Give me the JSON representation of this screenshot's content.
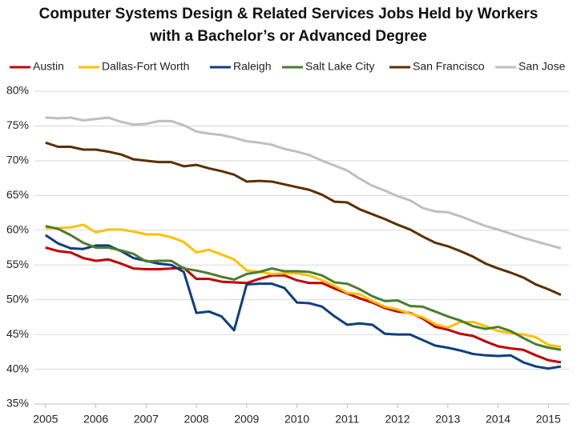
{
  "chart_data": {
    "type": "line",
    "title": [
      "Computer Systems Design & Related Services Jobs Held by Workers",
      "with a Bachelor’s or Advanced Degree"
    ],
    "x": [
      2005,
      2005.25,
      2005.5,
      2005.75,
      2006,
      2006.25,
      2006.5,
      2006.75,
      2007,
      2007.25,
      2007.5,
      2007.75,
      2008,
      2008.25,
      2008.5,
      2008.75,
      2009,
      2009.25,
      2009.5,
      2009.75,
      2010,
      2010.25,
      2010.5,
      2010.75,
      2011,
      2011.25,
      2011.5,
      2011.75,
      2012,
      2012.25,
      2012.5,
      2012.75,
      2013,
      2013.25,
      2013.5,
      2013.75,
      2014,
      2014.25,
      2014.5,
      2014.75,
      2015,
      2015.25
    ],
    "series": [
      {
        "name": "Austin",
        "color": "#c00000",
        "values": [
          57.5,
          57.0,
          56.8,
          56.0,
          55.6,
          55.8,
          55.2,
          54.5,
          54.4,
          54.4,
          54.5,
          54.6,
          53.0,
          53.0,
          52.6,
          52.5,
          52.4,
          53.0,
          53.5,
          53.5,
          52.8,
          52.4,
          52.4,
          51.6,
          50.9,
          50.2,
          49.6,
          48.8,
          48.3,
          48.1,
          47.3,
          46.1,
          45.7,
          45.1,
          44.8,
          44.0,
          43.3,
          43.0,
          42.8,
          42.0,
          41.3,
          41.0
        ]
      },
      {
        "name": "Dallas-Fort Worth",
        "color": "#ffc000",
        "values": [
          60.3,
          60.3,
          60.4,
          60.8,
          59.7,
          60.1,
          60.1,
          59.8,
          59.4,
          59.4,
          59.0,
          58.3,
          56.8,
          57.2,
          56.5,
          55.8,
          54.2,
          54.0,
          53.7,
          53.8,
          53.8,
          53.5,
          52.8,
          52.0,
          51.0,
          50.8,
          49.8,
          49.0,
          48.6,
          48.0,
          47.5,
          46.5,
          46.0,
          46.8,
          46.8,
          46.2,
          45.5,
          45.2,
          45.0,
          44.6,
          43.5,
          43.2
        ]
      },
      {
        "name": "Raleigh",
        "color": "#0b3f7f",
        "values": [
          59.3,
          58.1,
          57.4,
          57.3,
          57.8,
          57.8,
          57.0,
          56.0,
          55.6,
          55.2,
          55.0,
          54.0,
          48.1,
          48.3,
          47.6,
          45.6,
          52.2,
          52.3,
          52.3,
          51.7,
          49.6,
          49.5,
          49.0,
          47.6,
          46.4,
          46.6,
          46.4,
          45.1,
          45.0,
          45.0,
          44.2,
          43.4,
          43.1,
          42.7,
          42.2,
          42.0,
          41.9,
          42.0,
          41.0,
          40.4,
          40.1,
          40.4
        ]
      },
      {
        "name": "Salt Lake City",
        "color": "#4b7d2f",
        "values": [
          60.6,
          60.2,
          59.3,
          58.2,
          57.5,
          57.5,
          57.1,
          56.6,
          55.5,
          55.6,
          55.6,
          54.5,
          54.2,
          53.8,
          53.3,
          52.9,
          53.7,
          54.0,
          54.5,
          54.1,
          54.1,
          54.0,
          53.5,
          52.5,
          52.3,
          51.5,
          50.5,
          49.8,
          49.9,
          49.1,
          49.0,
          48.3,
          47.6,
          47.0,
          46.2,
          45.8,
          46.1,
          45.5,
          44.5,
          43.6,
          43.1,
          42.8
        ]
      },
      {
        "name": "San Francisco",
        "color": "#5c2f00",
        "values": [
          72.6,
          72.0,
          72.0,
          71.6,
          71.6,
          71.3,
          70.9,
          70.2,
          70.0,
          69.8,
          69.8,
          69.2,
          69.4,
          68.9,
          68.5,
          68.0,
          67.0,
          67.1,
          67.0,
          66.6,
          66.2,
          65.8,
          65.1,
          64.1,
          64.0,
          63.0,
          62.3,
          61.6,
          60.8,
          60.1,
          59.1,
          58.2,
          57.7,
          57.0,
          56.2,
          55.2,
          54.5,
          53.9,
          53.2,
          52.2,
          51.5,
          50.7
        ]
      },
      {
        "name": "San Jose",
        "color": "#bfbfbf",
        "values": [
          76.2,
          76.1,
          76.2,
          75.8,
          76.0,
          76.2,
          75.6,
          75.2,
          75.3,
          75.7,
          75.7,
          75.1,
          74.2,
          73.9,
          73.7,
          73.3,
          72.8,
          72.6,
          72.3,
          71.7,
          71.3,
          70.8,
          70.0,
          69.3,
          68.6,
          67.4,
          66.4,
          65.7,
          64.9,
          64.3,
          63.2,
          62.7,
          62.6,
          62.0,
          61.3,
          60.6,
          60.1,
          59.5,
          58.9,
          58.4,
          57.9,
          57.4
        ]
      }
    ],
    "xlim": [
      2004.78,
      2015.41
    ],
    "xticks": [
      2005,
      2006,
      2007,
      2008,
      2009,
      2010,
      2011,
      2012,
      2013,
      2014,
      2015
    ],
    "ylim": [
      35,
      80
    ],
    "yticks": [
      {
        "value": 35,
        "label": "35%"
      },
      {
        "value": 40,
        "label": "40%"
      },
      {
        "value": 45,
        "label": "45%"
      },
      {
        "value": 50,
        "label": "50%"
      },
      {
        "value": 55,
        "label": "55%"
      },
      {
        "value": 60,
        "label": "60%"
      },
      {
        "value": 65,
        "label": "65%"
      },
      {
        "value": 70,
        "label": "70%"
      },
      {
        "value": 75,
        "label": "75%"
      },
      {
        "value": 80,
        "label": "80%"
      }
    ],
    "grid": true,
    "legend": "top"
  }
}
